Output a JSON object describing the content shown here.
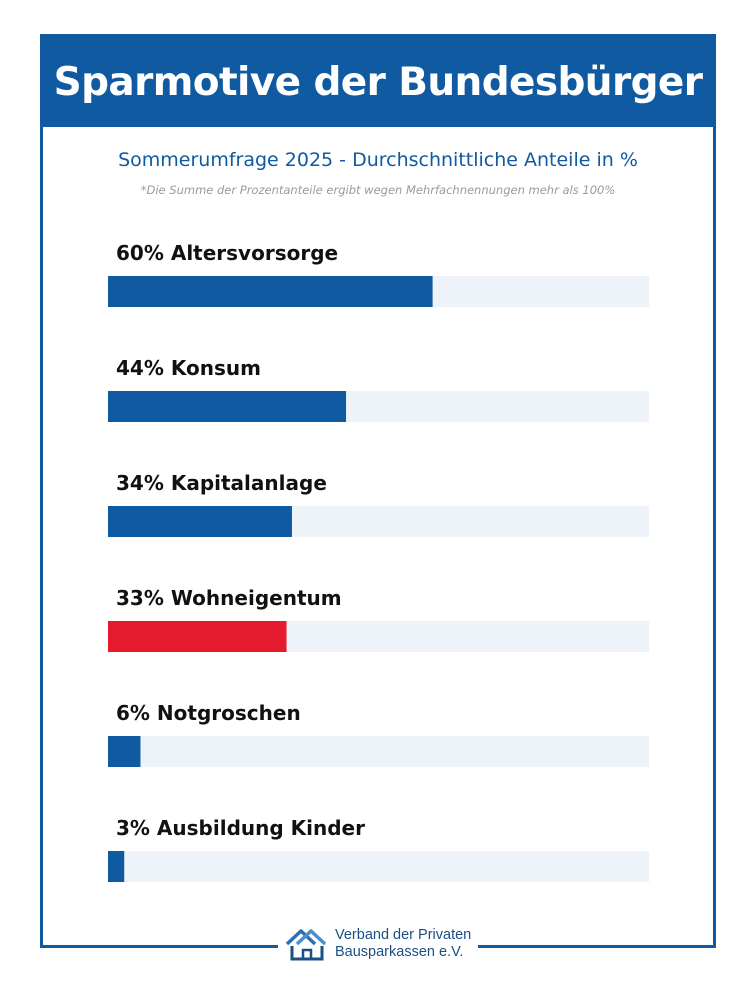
{
  "title": "Sparmotive der Bundesbürger",
  "subtitle": "Sommerumfrage 2025 - Durchschnittliche Anteile in %",
  "note": "*Die Summe der Prozentanteile ergibt wegen Mehrfachnennungen mehr als 100%",
  "colors": {
    "brand": "#0f5aa0",
    "highlight": "#e31b2d",
    "track": "#eef3f9",
    "label": "#111111"
  },
  "chart_data": {
    "type": "bar",
    "orientation": "horizontal",
    "title": "Sparmotive der Bundesbürger",
    "subtitle": "Sommerumfrage 2025 - Durchschnittliche Anteile in %",
    "xlim": [
      0,
      100
    ],
    "grid": false,
    "legend": "none",
    "categories": [
      "Altersvorsorge",
      "Konsum",
      "Kapitalanlage",
      "Wohneigentum",
      "Notgroschen",
      "Ausbildung Kinder"
    ],
    "values": [
      60,
      44,
      34,
      33,
      6,
      3
    ],
    "labels": [
      "60% Altersvorsorge",
      "44% Konsum",
      "34% Kapitalanlage",
      "33% Wohneigentum",
      "6% Notgroschen",
      "3% Ausbildung Kinder"
    ],
    "highlight_index": 3
  },
  "logo": {
    "line1": "Verband der Privaten",
    "line2": "Bausparkassen e.V.",
    "icon": "house-roofs-icon"
  }
}
